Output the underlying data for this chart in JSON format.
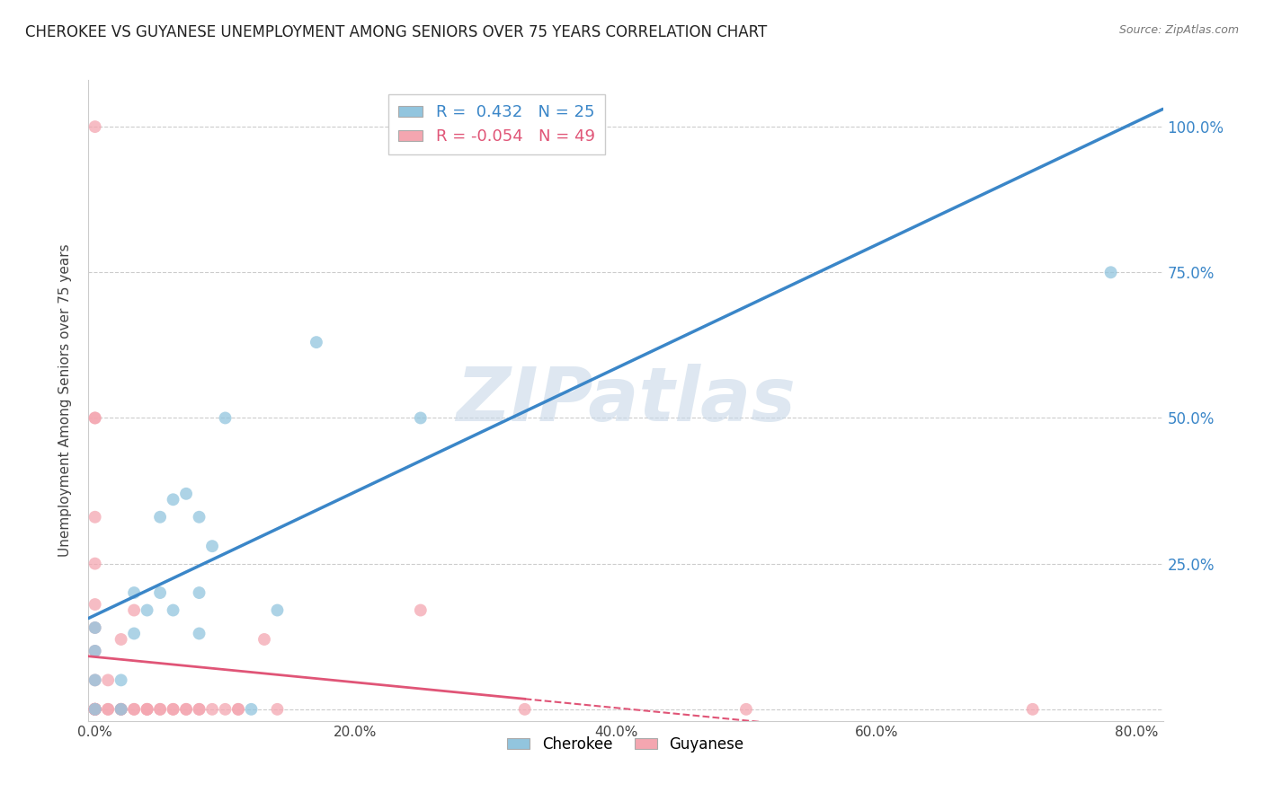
{
  "title": "CHEROKEE VS GUYANESE UNEMPLOYMENT AMONG SENIORS OVER 75 YEARS CORRELATION CHART",
  "source": "Source: ZipAtlas.com",
  "ylabel": "Unemployment Among Seniors over 75 years",
  "xlim": [
    -0.005,
    0.82
  ],
  "ylim": [
    -0.02,
    1.08
  ],
  "xticks": [
    0.0,
    0.2,
    0.4,
    0.6,
    0.8
  ],
  "xticklabels": [
    "0.0%",
    "20.0%",
    "40.0%",
    "60.0%",
    "80.0%"
  ],
  "yticks": [
    0.0,
    0.25,
    0.5,
    0.75,
    1.0
  ],
  "yticklabels": [
    "",
    "25.0%",
    "50.0%",
    "75.0%",
    "100.0%"
  ],
  "cherokee_R": 0.432,
  "cherokee_N": 25,
  "guyanese_R": -0.054,
  "guyanese_N": 49,
  "cherokee_color": "#92c5de",
  "guyanese_color": "#f4a6b0",
  "cherokee_line_color": "#3a86c8",
  "guyanese_line_color": "#e05577",
  "watermark": "ZIPatlas",
  "grid_color": "#cccccc",
  "cherokee_x": [
    0.0,
    0.0,
    0.0,
    0.0,
    0.02,
    0.03,
    0.03,
    0.04,
    0.05,
    0.05,
    0.06,
    0.06,
    0.07,
    0.08,
    0.08,
    0.08,
    0.09,
    0.1,
    0.12,
    0.17,
    0.25,
    0.78,
    0.25,
    0.14,
    0.02
  ],
  "cherokee_y": [
    0.0,
    0.05,
    0.1,
    0.14,
    0.05,
    0.13,
    0.2,
    0.17,
    0.2,
    0.33,
    0.17,
    0.36,
    0.37,
    0.13,
    0.2,
    0.33,
    0.28,
    0.5,
    0.0,
    0.63,
    1.0,
    0.75,
    0.5,
    0.17,
    0.0
  ],
  "guyanese_x": [
    0.0,
    0.0,
    0.0,
    0.0,
    0.0,
    0.0,
    0.0,
    0.0,
    0.0,
    0.0,
    0.0,
    0.0,
    0.0,
    0.0,
    0.0,
    0.0,
    0.0,
    0.0,
    0.01,
    0.01,
    0.01,
    0.02,
    0.02,
    0.02,
    0.02,
    0.03,
    0.03,
    0.03,
    0.04,
    0.04,
    0.04,
    0.05,
    0.05,
    0.06,
    0.06,
    0.07,
    0.07,
    0.08,
    0.08,
    0.09,
    0.1,
    0.11,
    0.11,
    0.13,
    0.14,
    0.25,
    0.33,
    0.5,
    0.72
  ],
  "guyanese_y": [
    0.0,
    0.0,
    0.0,
    0.0,
    0.0,
    0.0,
    0.0,
    0.0,
    0.0,
    0.05,
    0.1,
    0.14,
    0.18,
    0.25,
    0.33,
    0.5,
    0.5,
    1.0,
    0.0,
    0.0,
    0.05,
    0.0,
    0.0,
    0.0,
    0.12,
    0.0,
    0.0,
    0.17,
    0.0,
    0.0,
    0.0,
    0.0,
    0.0,
    0.0,
    0.0,
    0.0,
    0.0,
    0.0,
    0.0,
    0.0,
    0.0,
    0.0,
    0.0,
    0.12,
    0.0,
    0.17,
    0.0,
    0.0,
    0.0
  ]
}
